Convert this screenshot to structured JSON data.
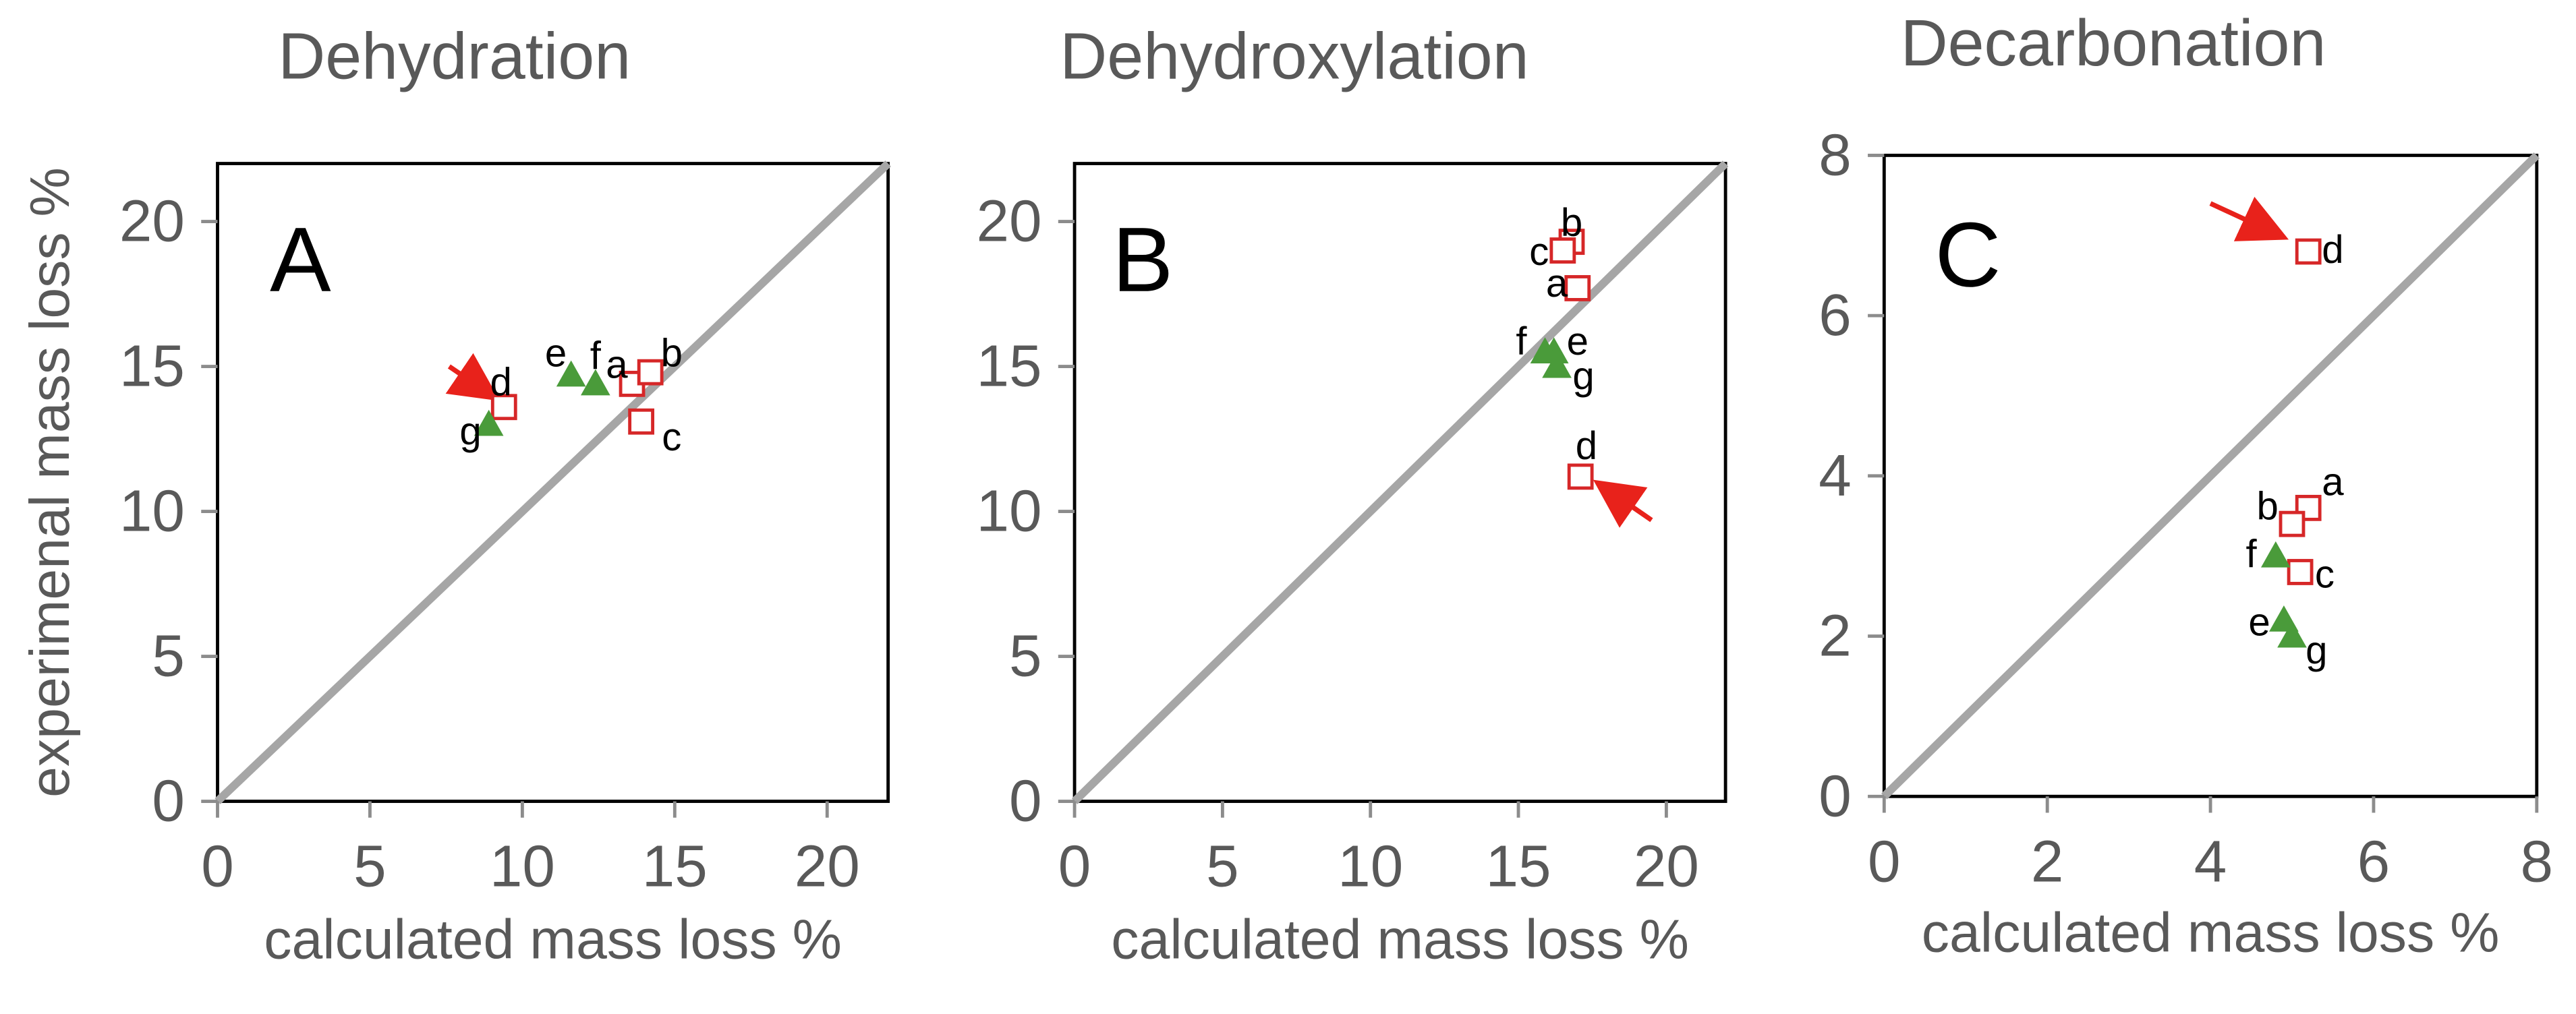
{
  "figure": {
    "y_axis_label": "experimenal mass loss %"
  },
  "chart_data": [
    {
      "type": "scatter",
      "title": "Dehydration",
      "panel_letter": "A",
      "xlabel": "calculated mass loss %",
      "ylabel": "experimenal mass loss %",
      "xlim": [
        0,
        22
      ],
      "ylim": [
        0,
        22
      ],
      "xticks": [
        0,
        5,
        10,
        15,
        20
      ],
      "yticks": [
        0,
        5,
        10,
        15,
        20
      ],
      "diagonal": true,
      "series": [
        {
          "name": "squares",
          "marker": "square",
          "color": "#d62728",
          "points": [
            {
              "label": "a",
              "x": 13.6,
              "y": 14.4,
              "label_dx": -0.5,
              "label_dy": 0.6
            },
            {
              "label": "b",
              "x": 14.2,
              "y": 14.8,
              "label_dx": 0.7,
              "label_dy": 0.6
            },
            {
              "label": "c",
              "x": 13.9,
              "y": 13.1,
              "label_dx": 1.0,
              "label_dy": -0.6
            },
            {
              "label": "d",
              "x": 9.4,
              "y": 13.6,
              "label_dx": -0.1,
              "label_dy": 0.8
            }
          ]
        },
        {
          "name": "triangles",
          "marker": "triangle",
          "color": "#4a9b3a",
          "points": [
            {
              "label": "e",
              "x": 11.6,
              "y": 14.7,
              "label_dx": -0.5,
              "label_dy": 0.7
            },
            {
              "label": "f",
              "x": 12.4,
              "y": 14.4,
              "label_dx": 0.0,
              "label_dy": 0.9
            },
            {
              "label": "g",
              "x": 8.9,
              "y": 13.0,
              "label_dx": -0.6,
              "label_dy": -0.3
            }
          ]
        }
      ],
      "arrows": [
        {
          "from": [
            7.6,
            15.0
          ],
          "to": [
            9.0,
            14.0
          ],
          "color": "#e8221b"
        }
      ]
    },
    {
      "type": "scatter",
      "title": "Dehydroxylation",
      "panel_letter": "B",
      "xlabel": "calculated mass loss %",
      "ylabel": "",
      "xlim": [
        0,
        22
      ],
      "ylim": [
        0,
        22
      ],
      "xticks": [
        0,
        5,
        10,
        15,
        20
      ],
      "yticks": [
        0,
        5,
        10,
        15,
        20
      ],
      "diagonal": true,
      "series": [
        {
          "name": "squares",
          "marker": "square",
          "color": "#d62728",
          "points": [
            {
              "label": "a",
              "x": 17.0,
              "y": 17.7,
              "label_dx": -0.7,
              "label_dy": 0.1
            },
            {
              "label": "b",
              "x": 16.8,
              "y": 19.3,
              "label_dx": 0.0,
              "label_dy": 0.6
            },
            {
              "label": "c",
              "x": 16.5,
              "y": 19.0,
              "label_dx": -0.8,
              "label_dy": -0.1
            },
            {
              "label": "d",
              "x": 17.1,
              "y": 11.2,
              "label_dx": 0.2,
              "label_dy": 1.0
            }
          ]
        },
        {
          "name": "triangles",
          "marker": "triangle",
          "color": "#4a9b3a",
          "points": [
            {
              "label": "e",
              "x": 16.2,
              "y": 15.5,
              "label_dx": 0.8,
              "label_dy": 0.3
            },
            {
              "label": "f",
              "x": 15.9,
              "y": 15.5,
              "label_dx": -0.8,
              "label_dy": 0.3
            },
            {
              "label": "g",
              "x": 16.3,
              "y": 15.0,
              "label_dx": 0.9,
              "label_dy": -0.4
            }
          ]
        }
      ],
      "arrows": [
        {
          "from": [
            19.5,
            9.7
          ],
          "to": [
            17.8,
            10.9
          ],
          "color": "#e8221b"
        }
      ]
    },
    {
      "type": "scatter",
      "title": "Decarbonation",
      "panel_letter": "C",
      "xlabel": "calculated mass loss %",
      "ylabel": "",
      "xlim": [
        0,
        8
      ],
      "ylim": [
        0,
        8
      ],
      "xticks": [
        0,
        2,
        4,
        6,
        8
      ],
      "yticks": [
        0,
        2,
        4,
        6,
        8
      ],
      "diagonal": true,
      "series": [
        {
          "name": "squares",
          "marker": "square",
          "color": "#d62728",
          "points": [
            {
              "label": "a",
              "x": 5.2,
              "y": 3.6,
              "label_dx": 0.3,
              "label_dy": 0.3
            },
            {
              "label": "b",
              "x": 5.0,
              "y": 3.4,
              "label_dx": -0.3,
              "label_dy": 0.2
            },
            {
              "label": "c",
              "x": 5.1,
              "y": 2.8,
              "label_dx": 0.3,
              "label_dy": -0.05
            },
            {
              "label": "d",
              "x": 5.2,
              "y": 6.8,
              "label_dx": 0.3,
              "label_dy": 0.0
            }
          ]
        },
        {
          "name": "triangles",
          "marker": "triangle",
          "color": "#4a9b3a",
          "points": [
            {
              "label": "e",
              "x": 4.9,
              "y": 2.2,
              "label_dx": -0.3,
              "label_dy": -0.05
            },
            {
              "label": "f",
              "x": 4.8,
              "y": 3.0,
              "label_dx": -0.3,
              "label_dy": 0.0
            },
            {
              "label": "g",
              "x": 5.0,
              "y": 2.0,
              "label_dx": 0.3,
              "label_dy": -0.2
            }
          ]
        }
      ],
      "arrows": [
        {
          "from": [
            4.0,
            7.4
          ],
          "to": [
            4.85,
            7.0
          ],
          "color": "#e8221b"
        }
      ]
    }
  ]
}
